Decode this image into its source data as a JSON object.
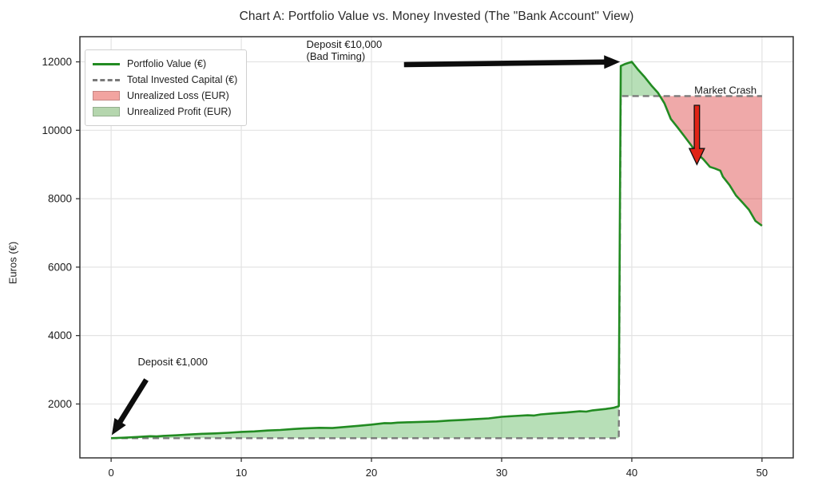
{
  "figure": {
    "background": "#ffffff"
  },
  "chart_data": {
    "type": "line",
    "title": "Chart A: Portfolio Value vs. Money Invested (The \"Bank Account\" View)",
    "xlabel": "",
    "ylabel": "Euros (€)",
    "x_ticks": [
      0,
      10,
      20,
      30,
      40,
      50
    ],
    "y_ticks": [
      2000,
      4000,
      6000,
      8000,
      10000,
      12000
    ],
    "xlim": [
      -2.4,
      52.4
    ],
    "ylim": [
      425,
      12735
    ],
    "grid": true,
    "grid_color": "#e3e3e3",
    "spine_color": "#333333",
    "tick_label_color": "#1c1c1c",
    "legend_position": "upper-left",
    "series": [
      {
        "name": "Portfolio Value (€)",
        "color": "#228B22",
        "width": 2.6,
        "dash": false,
        "points": [
          [
            0,
            1000
          ],
          [
            1,
            1015
          ],
          [
            2,
            1035
          ],
          [
            3,
            1060
          ],
          [
            3.5,
            1052
          ],
          [
            4,
            1068
          ],
          [
            5,
            1085
          ],
          [
            6,
            1108
          ],
          [
            7,
            1128
          ],
          [
            8,
            1140
          ],
          [
            9,
            1160
          ],
          [
            10,
            1185
          ],
          [
            11,
            1200
          ],
          [
            12,
            1225
          ],
          [
            13,
            1240
          ],
          [
            14,
            1270
          ],
          [
            15,
            1290
          ],
          [
            16,
            1305
          ],
          [
            17,
            1298
          ],
          [
            18,
            1330
          ],
          [
            19,
            1362
          ],
          [
            20,
            1398
          ],
          [
            21,
            1442
          ],
          [
            21.5,
            1436
          ],
          [
            22,
            1455
          ],
          [
            23,
            1468
          ],
          [
            24,
            1478
          ],
          [
            25,
            1490
          ],
          [
            26,
            1515
          ],
          [
            27,
            1535
          ],
          [
            28,
            1558
          ],
          [
            29,
            1578
          ],
          [
            30,
            1625
          ],
          [
            31,
            1648
          ],
          [
            32,
            1670
          ],
          [
            32.5,
            1662
          ],
          [
            33,
            1695
          ],
          [
            34,
            1725
          ],
          [
            35,
            1752
          ],
          [
            36,
            1786
          ],
          [
            36.5,
            1778
          ],
          [
            37,
            1815
          ],
          [
            38,
            1855
          ],
          [
            38.6,
            1890
          ],
          [
            39,
            1935
          ],
          [
            39.15,
            11880
          ],
          [
            39.5,
            11940
          ],
          [
            40,
            12000
          ],
          [
            40.5,
            11760
          ],
          [
            41,
            11550
          ],
          [
            41.5,
            11310
          ],
          [
            42,
            11100
          ],
          [
            42.5,
            10790
          ],
          [
            43,
            10330
          ],
          [
            43.5,
            10090
          ],
          [
            44,
            9845
          ],
          [
            44.5,
            9590
          ],
          [
            45,
            9330
          ],
          [
            45.5,
            9150
          ],
          [
            46,
            8930
          ],
          [
            46.4,
            8880
          ],
          [
            46.8,
            8820
          ],
          [
            47,
            8640
          ],
          [
            47.5,
            8400
          ],
          [
            48,
            8095
          ],
          [
            48.5,
            7890
          ],
          [
            49,
            7675
          ],
          [
            49.5,
            7350
          ],
          [
            50,
            7210
          ]
        ]
      },
      {
        "name": "Total Invested Capital (€)",
        "color": "#7a7a7a",
        "width": 2.4,
        "dash": true,
        "points": [
          [
            0,
            1000
          ],
          [
            39,
            1000
          ],
          [
            39.15,
            11000
          ],
          [
            50,
            11000
          ]
        ]
      }
    ],
    "areas": [
      {
        "name": "Unrealized Loss (EUR)",
        "mode": "below",
        "color": "rgba(214,39,40,0.40)"
      },
      {
        "name": "Unrealized Profit (EUR)",
        "mode": "above",
        "color": "rgba(44,160,44,0.34)"
      }
    ],
    "legend": [
      {
        "label": "Portfolio Value (€)",
        "swatch": "line",
        "color": "#228B22"
      },
      {
        "label": "Total Invested Capital (€)",
        "swatch": "dash",
        "color": "#7a7a7a"
      },
      {
        "label": "Unrealized Loss (EUR)",
        "swatch": "patch",
        "color": "#f2a4a0"
      },
      {
        "label": "Unrealized Profit (EUR)",
        "swatch": "patch",
        "color": "#b5d6ae"
      }
    ],
    "annotations": [
      {
        "id": "deposit-1000",
        "lines": [
          "Deposit €1,000"
        ],
        "x": 2.05,
        "y": 3390,
        "arrow": {
          "x1": 2.7,
          "y1": 2710,
          "x2": 0.05,
          "y2": 1090,
          "style": "black"
        }
      },
      {
        "id": "deposit-10000",
        "lines": [
          "Deposit €10,000",
          "(Bad Timing)"
        ],
        "x": 15.0,
        "y": 12660,
        "arrow": {
          "x1": 22.5,
          "y1": 11920,
          "x2": 39.1,
          "y2": 12000,
          "style": "black"
        }
      },
      {
        "id": "market-crash",
        "lines": [
          "Market Crash"
        ],
        "x": 44.8,
        "y": 11330,
        "arrow": {
          "x1": 45.0,
          "y1": 10730,
          "x2": 45.0,
          "y2": 9000,
          "style": "red"
        }
      }
    ],
    "annotation_text_color": "#1a1a1a",
    "arrow_black_color": "#0d0d0d",
    "arrow_red_color": "#e02417"
  }
}
